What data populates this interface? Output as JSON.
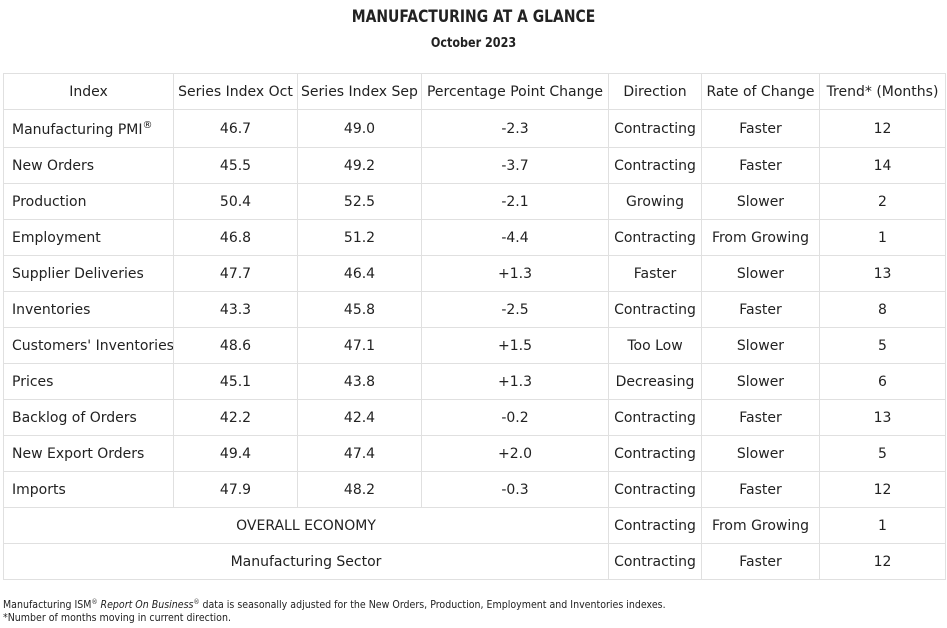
{
  "title": "MANUFACTURING AT A GLANCE",
  "subtitle": "October 2023",
  "headers": [
    "Index",
    "Series Index Oct",
    "Series Index Sep",
    "Percentage Point Change",
    "Direction",
    "Rate of Change",
    "Trend* (Months)"
  ],
  "rows": [
    {
      "name": "Manufacturing PMI",
      "name_suffix": "®",
      "oct": "46.7",
      "sep": "49.0",
      "change": "-2.3",
      "direction": "Contracting",
      "rate": "Faster",
      "trend": "12"
    },
    {
      "name": "New Orders",
      "oct": "45.5",
      "sep": "49.2",
      "change": "-3.7",
      "direction": "Contracting",
      "rate": "Faster",
      "trend": "14"
    },
    {
      "name": "Production",
      "oct": "50.4",
      "sep": "52.5",
      "change": "-2.1",
      "direction": "Growing",
      "rate": "Slower",
      "trend": "2"
    },
    {
      "name": "Employment",
      "oct": "46.8",
      "sep": "51.2",
      "change": "-4.4",
      "direction": "Contracting",
      "rate": "From Growing",
      "trend": "1"
    },
    {
      "name": "Supplier Deliveries",
      "oct": "47.7",
      "sep": "46.4",
      "change": "+1.3",
      "direction": "Faster",
      "rate": "Slower",
      "trend": "13"
    },
    {
      "name": "Inventories",
      "oct": "43.3",
      "sep": "45.8",
      "change": "-2.5",
      "direction": "Contracting",
      "rate": "Faster",
      "trend": "8"
    },
    {
      "name": "Customers' Inventories",
      "oct": "48.6",
      "sep": "47.1",
      "change": "+1.5",
      "direction": "Too Low",
      "rate": "Slower",
      "trend": "5"
    },
    {
      "name": "Prices",
      "oct": "45.1",
      "sep": "43.8",
      "change": "+1.3",
      "direction": "Decreasing",
      "rate": "Slower",
      "trend": "6"
    },
    {
      "name": "Backlog of Orders",
      "oct": "42.2",
      "sep": "42.4",
      "change": "-0.2",
      "direction": "Contracting",
      "rate": "Faster",
      "trend": "13"
    },
    {
      "name": "New Export Orders",
      "oct": "49.4",
      "sep": "47.4",
      "change": "+2.0",
      "direction": "Contracting",
      "rate": "Slower",
      "trend": "5"
    },
    {
      "name": "Imports",
      "oct": "47.9",
      "sep": "48.2",
      "change": "-0.3",
      "direction": "Contracting",
      "rate": "Faster",
      "trend": "12"
    }
  ],
  "summary_rows": [
    {
      "label": "OVERALL ECONOMY",
      "direction": "Contracting",
      "rate": "From Growing",
      "trend": "1"
    },
    {
      "label": "Manufacturing Sector",
      "direction": "Contracting",
      "rate": "Faster",
      "trend": "12"
    }
  ],
  "footnote": {
    "line1_a": "Manufacturing ISM",
    "line1_reg1": "®",
    "line1_italic": "Report On Business",
    "line1_reg2": "®",
    "line1_b": " data is seasonally adjusted for the New Orders, Production, Employment and Inventories indexes.",
    "line2": "*Number of months moving in current direction."
  }
}
